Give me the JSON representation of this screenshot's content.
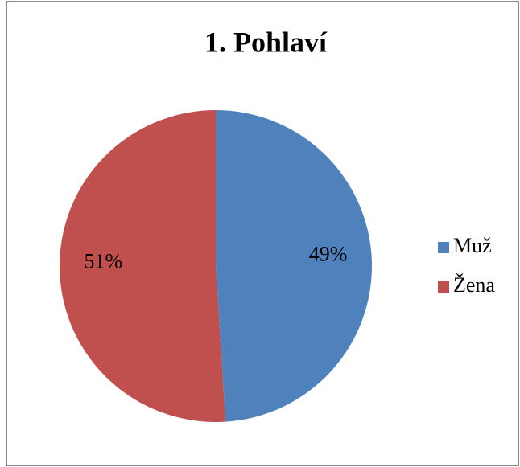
{
  "chart_data": {
    "type": "pie",
    "title": "1. Pohlaví",
    "categories": [
      "Muž",
      "Žena"
    ],
    "values": [
      49,
      51
    ],
    "value_labels": [
      "49%",
      "51%"
    ],
    "colors": [
      "#4f81bd",
      "#c0504d"
    ],
    "legend": "right"
  }
}
